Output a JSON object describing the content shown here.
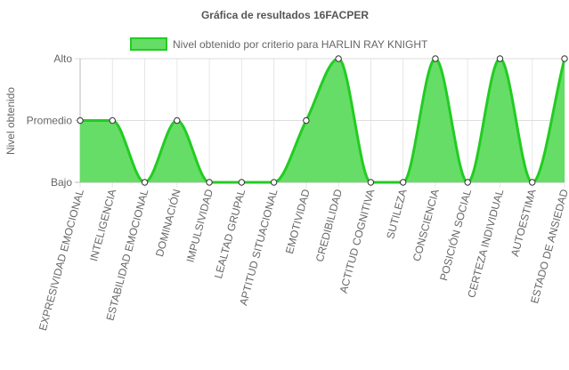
{
  "chart_data": {
    "type": "line",
    "title": "Gráfica de resultados 16FACPER",
    "ylabel": "Nivel obtenido",
    "xlabel": "",
    "y_levels": [
      "Bajo",
      "Promedio",
      "Alto"
    ],
    "ylim": [
      0,
      2
    ],
    "grid": true,
    "legend_position": "top",
    "categories": [
      "EXPRESIVIDAD EMOCIONAL",
      "INTELIGENCIA",
      "ESTABILIDAD EMOCIONAL",
      "DOMINACIÓN",
      "IMPULSIVIDAD",
      "LEALTAD GRUPAL",
      "APTITUD SITUACIONAL",
      "EMOTIVIDAD",
      "CREDIBILIDAD",
      "ACTITUD COGNITIVA",
      "SUTILEZA",
      "CONSCIENCIA",
      "POSICIÓN SOCIAL",
      "CERTEZA INDIVIDUAL",
      "AUTOESTIMA",
      "ESTADO DE ANSIEDAD"
    ],
    "series": [
      {
        "name": "Nivel obtenido por criterio para HARLIN RAY KNIGHT",
        "values": [
          1,
          1,
          0,
          1,
          0,
          0,
          0,
          1,
          2,
          0,
          0,
          2,
          0,
          2,
          0,
          2
        ],
        "stroke": "#22cc22",
        "fill": "#66dd66"
      }
    ]
  }
}
